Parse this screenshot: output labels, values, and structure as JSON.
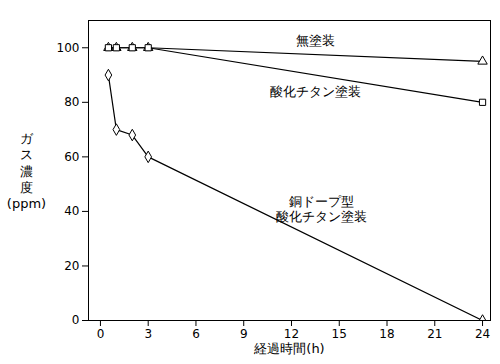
{
  "chart_data": {
    "type": "line",
    "x_label": "経過時間(h)",
    "y_label": "ガス濃度(ppm)",
    "xlim": [
      -0.75,
      24.5
    ],
    "xticks": [
      0,
      3,
      6,
      9,
      12,
      15,
      18,
      21,
      24
    ],
    "ylim": [
      0,
      110
    ],
    "yticks": [
      0,
      20,
      40,
      60,
      80,
      100
    ],
    "grid": false,
    "x": [
      0.5,
      1,
      2,
      3,
      24
    ],
    "series": [
      {
        "name": "無塗装",
        "color": "#000000",
        "marker": "triangle",
        "line_style": "solid",
        "values": [
          100,
          100,
          100,
          100,
          95
        ]
      },
      {
        "name": "酸化チタン塗装",
        "color": "#000000",
        "marker": "square",
        "line_style": "solid",
        "values": [
          100,
          100,
          100,
          100,
          80
        ]
      },
      {
        "name": "銅ドープ型\n酸化チタン塗装",
        "color": "#000000",
        "marker": "diamond",
        "line_style": "solid",
        "values": [
          90,
          70,
          68,
          60,
          0
        ]
      }
    ]
  }
}
